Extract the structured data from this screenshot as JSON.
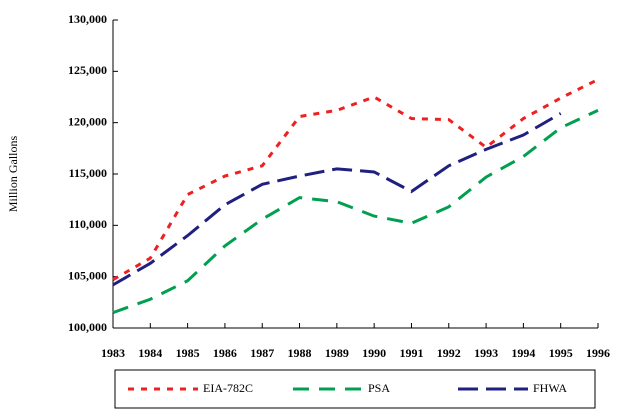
{
  "chart_data": {
    "type": "line",
    "y_label": "Million Gallons",
    "categories": [
      "1983",
      "1984",
      "1985",
      "1986",
      "1987",
      "1988",
      "1989",
      "1990",
      "1991",
      "1992",
      "1993",
      "1994",
      "1995",
      "1996"
    ],
    "series": [
      {
        "name": "EIA-782C",
        "color": "#ee2020",
        "dash": "6 7",
        "values": [
          104700,
          106800,
          113000,
          114800,
          115800,
          120600,
          121200,
          122500,
          120400,
          120300,
          117600,
          120400,
          122400,
          124200
        ]
      },
      {
        "name": "PSA",
        "color": "#00a050",
        "dash": "16 10",
        "values": [
          101500,
          102800,
          104600,
          108000,
          110600,
          112700,
          112300,
          110900,
          110200,
          111800,
          114700,
          116700,
          119500,
          121200
        ]
      },
      {
        "name": "FHWA",
        "color": "#202080",
        "dash": "20 8",
        "values": [
          104200,
          106300,
          109000,
          112000,
          114000,
          114800,
          115500,
          115200,
          113300,
          115800,
          117400,
          118800,
          120900,
          null
        ]
      }
    ],
    "ylim": [
      100000,
      130000
    ],
    "yticks": [
      {
        "value": 100000,
        "label": "100,000"
      },
      {
        "value": 105000,
        "label": "105,000"
      },
      {
        "value": 110000,
        "label": "110,000"
      },
      {
        "value": 115000,
        "label": "115,000"
      },
      {
        "value": 120000,
        "label": "120,000"
      },
      {
        "value": 125000,
        "label": "125,000"
      },
      {
        "value": 130000,
        "label": "130,000"
      }
    ]
  }
}
